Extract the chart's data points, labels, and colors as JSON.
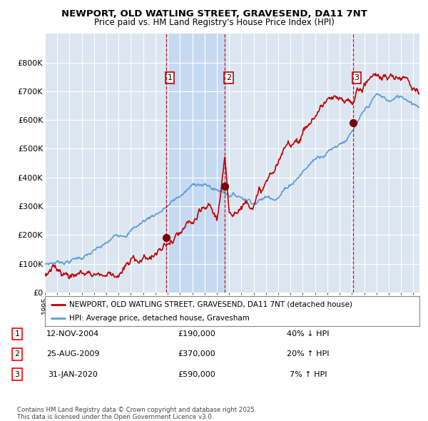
{
  "title_line1": "NEWPORT, OLD WATLING STREET, GRAVESEND, DA11 7NT",
  "title_line2": "Price paid vs. HM Land Registry's House Price Index (HPI)",
  "ylim": [
    0,
    900000
  ],
  "yticks": [
    0,
    100000,
    200000,
    300000,
    400000,
    500000,
    600000,
    700000,
    800000
  ],
  "ytick_labels": [
    "£0",
    "£100K",
    "£200K",
    "£300K",
    "£400K",
    "£500K",
    "£600K",
    "£700K",
    "£800K"
  ],
  "hpi_color": "#5b9bd5",
  "price_color": "#c00000",
  "sale_marker_color": "#7b0000",
  "vline_color": "#c00000",
  "background_color": "#ffffff",
  "plot_bg_color": "#dce6f1",
  "grid_color": "#ffffff",
  "shade_color": "#c5d9f1",
  "legend_label_price": "NEWPORT, OLD WATLING STREET, GRAVESEND, DA11 7NT (detached house)",
  "legend_label_hpi": "HPI: Average price, detached house, Gravesham",
  "sales": [
    {
      "num": 1,
      "date_num": 2004.87,
      "price": 190000,
      "label": "12-NOV-2004",
      "price_str": "£190,000",
      "pct": "40%",
      "dir": "↓"
    },
    {
      "num": 2,
      "date_num": 2009.65,
      "price": 370000,
      "label": "25-AUG-2009",
      "price_str": "£370,000",
      "pct": "20%",
      "dir": "↑"
    },
    {
      "num": 3,
      "date_num": 2020.08,
      "price": 590000,
      "label": "31-JAN-2020",
      "price_str": "£590,000",
      "pct": "7%",
      "dir": "↑"
    }
  ],
  "footer_line1": "Contains HM Land Registry data © Crown copyright and database right 2025.",
  "footer_line2": "This data is licensed under the Open Government Licence v3.0.",
  "xlim": [
    1995,
    2025.5
  ],
  "xtick_start": 1995,
  "xtick_end": 2026
}
